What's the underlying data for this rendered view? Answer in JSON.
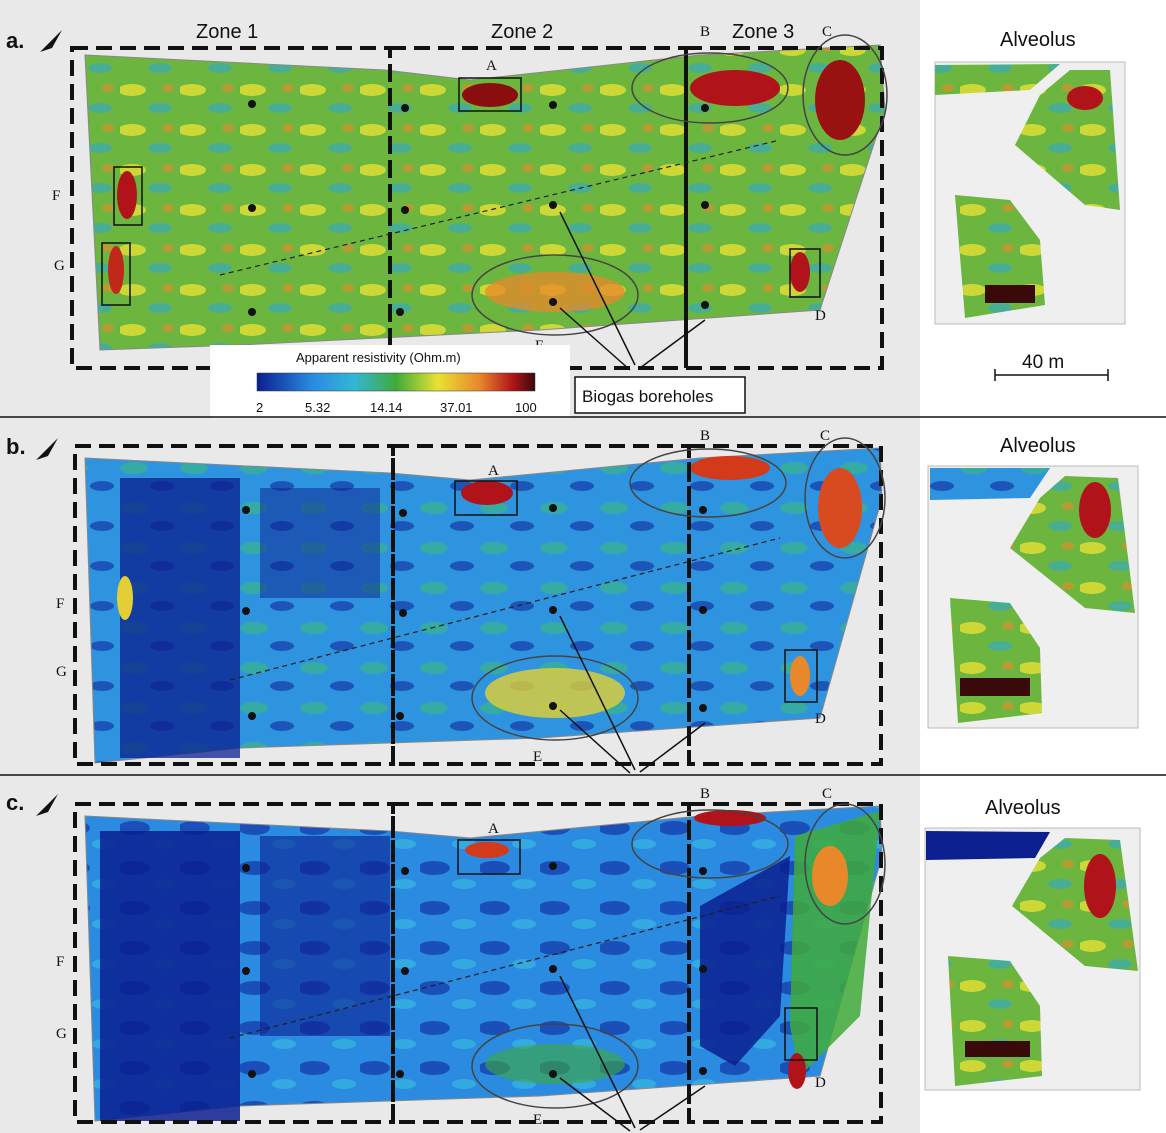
{
  "figure": {
    "panels": [
      {
        "label": "a.",
        "alveolus_title": "Alveolus",
        "letters": {
          "A": "A",
          "B": "B",
          "C": "C",
          "D": "D",
          "E": "E",
          "F": "F",
          "G": "G"
        }
      },
      {
        "label": "b.",
        "alveolus_title": "Alveolus",
        "letters": {
          "A": "A",
          "B": "B",
          "C": "C",
          "D": "D",
          "E": "E",
          "F": "F",
          "G": "G"
        }
      },
      {
        "label": "c.",
        "alveolus_title": "Alveolus",
        "letters": {
          "A": "A",
          "B": "B",
          "C": "C",
          "D": "D",
          "E": "E",
          "F": "F",
          "G": "G"
        }
      }
    ],
    "zones": [
      "Zone 1",
      "Zone 2",
      "Zone 3"
    ],
    "colorbar": {
      "title": "Apparent resistivity (Ohm.m)",
      "ticks": [
        "2",
        "5.32",
        "14.14",
        "37.01",
        "100"
      ]
    },
    "biogas_label": "Biogas boreholes",
    "scale_bar": "40 m"
  },
  "colors": {
    "very_low": "#0b1f8f",
    "low": "#2a8be0",
    "mid_low": "#33b6d6",
    "mid": "#3faa3a",
    "mid_high": "#e8e233",
    "high": "#e8882a",
    "very_high": "#b0141a",
    "max": "#3a0a0a",
    "map_background": "#e9e9e9"
  }
}
